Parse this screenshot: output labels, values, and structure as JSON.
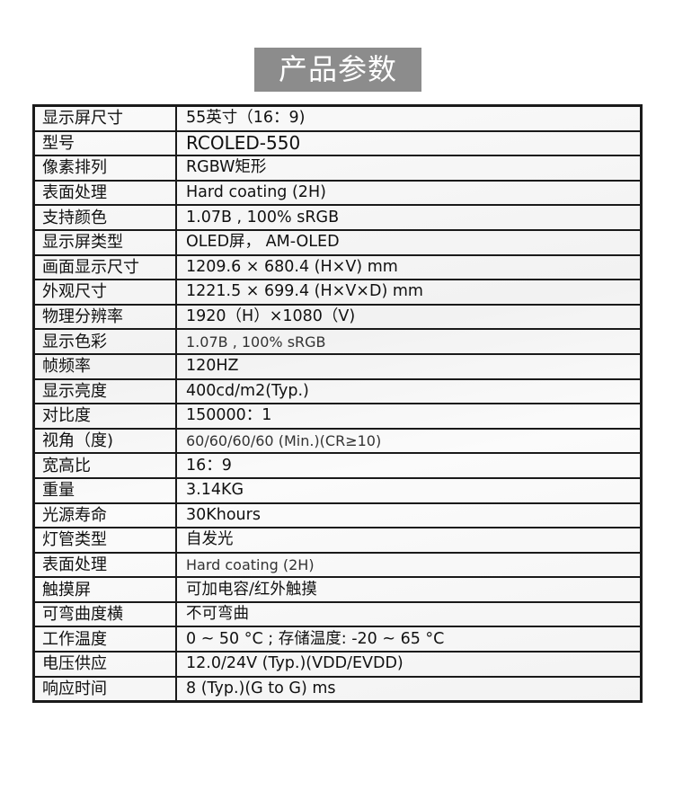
{
  "title": "产品参数",
  "specs": [
    {
      "label": "显示屏尺寸",
      "value": "55英寸（16：9)"
    },
    {
      "label": "型号",
      "value": "RCOLED-550"
    },
    {
      "label": "像素排列",
      "value": "RGBW矩形"
    },
    {
      "label": "表面处理",
      "value": "Hard coating (2H)"
    },
    {
      "label": "支持颜色",
      "value": "1.07B , 100% sRGB"
    },
    {
      "label": "显示屏类型",
      "value": "OLED屏， AM-OLED"
    },
    {
      "label": "画面显示尺寸",
      "value": "1209.6 × 680.4 (H×V) mm"
    },
    {
      "label": "外观尺寸",
      "value": "1221.5 × 699.4 (H×V×D) mm"
    },
    {
      "label": "物理分辨率",
      "value": "1920（H）×1080（V)"
    },
    {
      "label": "显示色彩",
      "value": "1.07B , 100% sRGB"
    },
    {
      "label": "帧频率",
      "value": "120HZ"
    },
    {
      "label": "显示亮度",
      "value": "400cd/m2(Typ.)"
    },
    {
      "label": "对比度",
      "value": "150000：1"
    },
    {
      "label": "视角（度)",
      "value": "60/60/60/60 (Min.)(CR≥10)"
    },
    {
      "label": "宽高比",
      "value": "16：9"
    },
    {
      "label": "重量",
      "value": "3.14KG"
    },
    {
      "label": "光源寿命",
      "value": "30Khours"
    },
    {
      "label": "灯管类型",
      "value": "自发光"
    },
    {
      "label": "表面处理",
      "value": "Hard coating (2H)"
    },
    {
      "label": "触摸屏",
      "value": "可加电容/红外触摸"
    },
    {
      "label": "可弯曲度横",
      "value": "不可弯曲"
    },
    {
      "label": "工作温度",
      "value": "0 ~ 50 °C ; 存储温度: -20 ~ 65 °C"
    },
    {
      "label": "电压供应",
      "value": "12.0/24V (Typ.)(VDD/EVDD)"
    },
    {
      "label": "响应时间",
      "value": "8 (Typ.)(G to G) ms"
    }
  ]
}
